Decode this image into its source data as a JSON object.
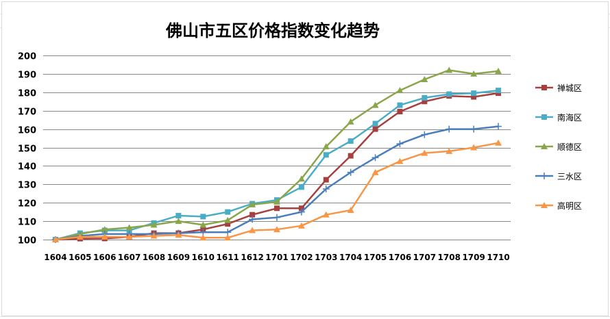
{
  "chart_data": {
    "type": "line",
    "title": "佛山市五区价格指数变化趋势",
    "xlabel": "",
    "ylabel": "",
    "categories": [
      "1604",
      "1605",
      "1606",
      "1607",
      "1608",
      "1609",
      "1610",
      "1611",
      "1612",
      "1701",
      "1702",
      "1703",
      "1704",
      "1705",
      "1706",
      "1707",
      "1708",
      "1709",
      "1710"
    ],
    "ylim": [
      100,
      200
    ],
    "yticks": [
      100,
      110,
      120,
      130,
      140,
      150,
      160,
      170,
      180,
      190,
      200
    ],
    "grid": true,
    "legend_position": "right",
    "series": [
      {
        "name": "禅城区",
        "color": "#a5403f",
        "marker": "square",
        "values": [
          100,
          100.5,
          100.6,
          101.5,
          103.5,
          103.5,
          105.5,
          108.5,
          113.5,
          117,
          117,
          132.5,
          145.5,
          160,
          169.5,
          175,
          178,
          177.5,
          179.5
        ]
      },
      {
        "name": "南海区",
        "color": "#4bacc6",
        "marker": "square",
        "values": [
          100,
          103.5,
          105,
          105,
          109,
          113,
          112.5,
          115,
          119.5,
          121.5,
          128.5,
          146,
          153.5,
          163,
          173,
          177,
          179,
          179.5,
          181
        ]
      },
      {
        "name": "顺德区",
        "color": "#8aa64a",
        "marker": "triangle",
        "values": [
          100,
          103,
          105.5,
          106.5,
          108,
          110,
          108,
          110.5,
          119,
          120.5,
          133,
          150.5,
          164,
          173,
          181,
          187,
          192,
          190,
          191.5
        ]
      },
      {
        "name": "三水区",
        "color": "#4a7ebb",
        "marker": "plus",
        "values": [
          100,
          102,
          103,
          103,
          103,
          103.5,
          104,
          104,
          111,
          112,
          115,
          127.5,
          136.5,
          144.5,
          152,
          157,
          160,
          160,
          161.5
        ]
      },
      {
        "name": "高明区",
        "color": "#f79646",
        "marker": "triangle",
        "values": [
          100,
          101.5,
          101.5,
          101.5,
          102,
          102.5,
          101,
          101,
          105,
          105.5,
          107.5,
          113.5,
          116,
          136.5,
          142.5,
          147,
          148,
          150,
          152.5
        ]
      }
    ]
  }
}
